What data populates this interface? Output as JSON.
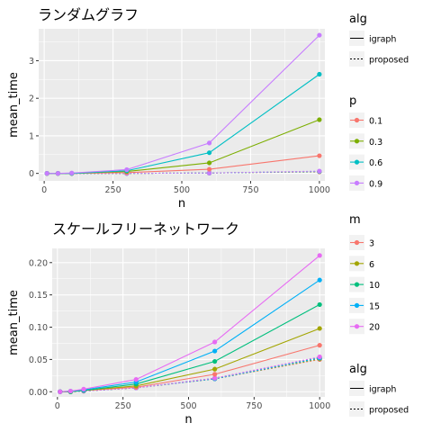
{
  "chart_data": [
    {
      "type": "line",
      "title": "ランダムグラフ",
      "xlabel": "n",
      "ylabel": "mean_time",
      "xlim": [
        -20,
        1020
      ],
      "ylim": [
        -0.2,
        3.85
      ],
      "xticks": [
        0,
        250,
        500,
        750,
        1000
      ],
      "xtick_labels": [
        "0",
        "250",
        "500",
        "750",
        "1000"
      ],
      "yticks": [
        0,
        1,
        2,
        3
      ],
      "ytick_labels": [
        "0",
        "1",
        "2",
        "3"
      ],
      "x": [
        10,
        50,
        100,
        300,
        600,
        1000
      ],
      "grid": true,
      "legend_position": "right",
      "color_legend_title": "p",
      "linetype_legend_title": "alg",
      "linetype_entries": [
        "igraph",
        "proposed"
      ],
      "series": [
        {
          "name": "0.1",
          "color": "#F8766D",
          "alg": "igraph",
          "values": [
            0.0,
            0.0,
            0.0,
            0.02,
            0.11,
            0.47
          ]
        },
        {
          "name": "0.3",
          "color": "#7CAE00",
          "alg": "igraph",
          "values": [
            0.0,
            0.0,
            0.0,
            0.05,
            0.28,
            1.43
          ]
        },
        {
          "name": "0.6",
          "color": "#00BFC4",
          "alg": "igraph",
          "values": [
            0.0,
            0.0,
            0.0,
            0.07,
            0.55,
            2.64
          ]
        },
        {
          "name": "0.9",
          "color": "#C77CFF",
          "alg": "igraph",
          "values": [
            0.0,
            0.0,
            0.01,
            0.1,
            0.81,
            3.68
          ]
        },
        {
          "name": "0.1",
          "color": "#F8766D",
          "alg": "proposed",
          "values": [
            0.0,
            0.0,
            0.0,
            0.0,
            0.01,
            0.04
          ]
        },
        {
          "name": "0.3",
          "color": "#7CAE00",
          "alg": "proposed",
          "values": [
            0.0,
            0.0,
            0.0,
            0.0,
            0.01,
            0.05
          ]
        },
        {
          "name": "0.6",
          "color": "#00BFC4",
          "alg": "proposed",
          "values": [
            0.0,
            0.0,
            0.0,
            0.0,
            0.01,
            0.05
          ]
        },
        {
          "name": "0.9",
          "color": "#C77CFF",
          "alg": "proposed",
          "values": [
            0.0,
            0.0,
            0.0,
            0.0,
            0.01,
            0.06
          ]
        }
      ]
    },
    {
      "type": "line",
      "title": "スケールフリーネットワーク",
      "xlabel": "n",
      "ylabel": "mean_time",
      "xlim": [
        -20,
        1020
      ],
      "ylim": [
        -0.008,
        0.222
      ],
      "xticks": [
        0,
        250,
        500,
        750,
        1000
      ],
      "xtick_labels": [
        "0",
        "250",
        "500",
        "750",
        "1000"
      ],
      "yticks": [
        0,
        0.05,
        0.1,
        0.15,
        0.2
      ],
      "ytick_labels": [
        "0.00",
        "0.05",
        "0.10",
        "0.15",
        "0.20"
      ],
      "x": [
        10,
        50,
        100,
        300,
        600,
        1000
      ],
      "grid": true,
      "legend_position": "right",
      "color_legend_title": "m",
      "linetype_legend_title": "alg",
      "linetype_entries": [
        "igraph",
        "proposed"
      ],
      "series": [
        {
          "name": "3",
          "color": "#F8766D",
          "alg": "igraph",
          "values": [
            0.0,
            0.0,
            0.002,
            0.007,
            0.027,
            0.072
          ]
        },
        {
          "name": "6",
          "color": "#A3A500",
          "alg": "igraph",
          "values": [
            0.0,
            0.0,
            0.002,
            0.009,
            0.035,
            0.098
          ]
        },
        {
          "name": "10",
          "color": "#00BF7D",
          "alg": "igraph",
          "values": [
            0.0,
            0.0,
            0.002,
            0.012,
            0.047,
            0.135
          ]
        },
        {
          "name": "15",
          "color": "#00B0F6",
          "alg": "igraph",
          "values": [
            0.0,
            0.001,
            0.003,
            0.015,
            0.063,
            0.173
          ]
        },
        {
          "name": "20",
          "color": "#E76BF3",
          "alg": "igraph",
          "values": [
            0.0,
            0.001,
            0.004,
            0.019,
            0.077,
            0.211
          ]
        },
        {
          "name": "3",
          "color": "#F8766D",
          "alg": "proposed",
          "values": [
            0.0,
            0.0,
            0.001,
            0.006,
            0.02,
            0.05
          ]
        },
        {
          "name": "6",
          "color": "#A3A500",
          "alg": "proposed",
          "values": [
            0.0,
            0.0,
            0.001,
            0.006,
            0.02,
            0.051
          ]
        },
        {
          "name": "10",
          "color": "#00BF7D",
          "alg": "proposed",
          "values": [
            0.0,
            0.0,
            0.001,
            0.006,
            0.021,
            0.053
          ]
        },
        {
          "name": "15",
          "color": "#00B0F6",
          "alg": "proposed",
          "values": [
            0.0,
            0.0,
            0.001,
            0.006,
            0.02,
            0.052
          ]
        },
        {
          "name": "20",
          "color": "#E76BF3",
          "alg": "proposed",
          "values": [
            0.0,
            0.0,
            0.001,
            0.006,
            0.021,
            0.054
          ]
        }
      ]
    }
  ]
}
